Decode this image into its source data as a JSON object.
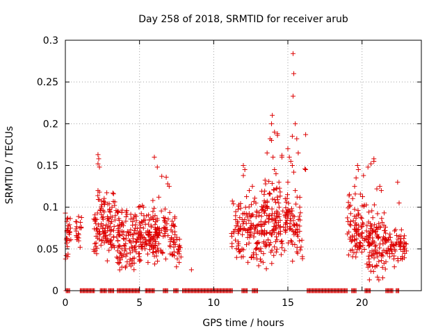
{
  "chart_data": {
    "type": "scatter",
    "title": "Day 258 of 2018, SRMTID for receiver arub",
    "xlabel": "GPS time / hours",
    "ylabel": "SRMTID / TECUs",
    "xlim": [
      0,
      24
    ],
    "ylim": [
      0,
      0.3
    ],
    "x_ticks": [
      0,
      5,
      10,
      15,
      20
    ],
    "x_tick_labels": [
      "0",
      "5",
      "10",
      "15",
      "20"
    ],
    "y_ticks": [
      0,
      0.05,
      0.1,
      0.15,
      0.2,
      0.25,
      0.3
    ],
    "y_tick_labels": [
      "0",
      "0.05",
      "0.1",
      "0.15",
      "0.2",
      "0.25",
      "0.3"
    ],
    "grid": true,
    "marker": "plus",
    "series": [
      {
        "name": "SRMTID",
        "color": "#dd0000",
        "clusters": [
          {
            "x_range": [
              0.0,
              0.4
            ],
            "y_range": [
              0.028,
              0.097
            ],
            "count": 28
          },
          {
            "x_range": [
              0.7,
              1.1
            ],
            "y_range": [
              0.05,
              0.098
            ],
            "count": 22
          },
          {
            "x_range": [
              1.9,
              3.4
            ],
            "y_range": [
              0.03,
              0.12
            ],
            "count": 120
          },
          {
            "x_range": [
              3.4,
              5.2
            ],
            "y_range": [
              0.018,
              0.105
            ],
            "count": 140
          },
          {
            "x_range": [
              5.0,
              6.3
            ],
            "y_range": [
              0.024,
              0.105
            ],
            "count": 100
          },
          {
            "x_range": [
              6.0,
              7.4
            ],
            "y_range": [
              0.03,
              0.108
            ],
            "count": 70
          },
          {
            "x_range": [
              7.2,
              7.9
            ],
            "y_range": [
              0.025,
              0.078
            ],
            "count": 22
          },
          {
            "x_range": [
              11.2,
              12.6
            ],
            "y_range": [
              0.025,
              0.12
            ],
            "count": 90
          },
          {
            "x_range": [
              12.6,
              14.3
            ],
            "y_range": [
              0.018,
              0.145
            ],
            "count": 150
          },
          {
            "x_range": [
              14.3,
              15.2
            ],
            "y_range": [
              0.04,
              0.13
            ],
            "count": 60
          },
          {
            "x_range": [
              15.2,
              16.0
            ],
            "y_range": [
              0.03,
              0.125
            ],
            "count": 45
          },
          {
            "x_range": [
              19.0,
              20.3
            ],
            "y_range": [
              0.03,
              0.12
            ],
            "count": 90
          },
          {
            "x_range": [
              20.3,
              21.6
            ],
            "y_range": [
              0.012,
              0.105
            ],
            "count": 110
          },
          {
            "x_range": [
              21.6,
              23.0
            ],
            "y_range": [
              0.028,
              0.075
            ],
            "count": 70
          }
        ],
        "points": [
          [
            2.2,
            0.163
          ],
          [
            2.25,
            0.158
          ],
          [
            2.2,
            0.152
          ],
          [
            2.3,
            0.148
          ],
          [
            2.2,
            0.12
          ],
          [
            2.3,
            0.118
          ],
          [
            3.2,
            0.117
          ],
          [
            3.25,
            0.116
          ],
          [
            3.0,
            0.095
          ],
          [
            6.0,
            0.16
          ],
          [
            6.2,
            0.148
          ],
          [
            6.5,
            0.137
          ],
          [
            6.8,
            0.136
          ],
          [
            6.9,
            0.128
          ],
          [
            7.0,
            0.125
          ],
          [
            6.3,
            0.112
          ],
          [
            5.9,
            0.108
          ],
          [
            8.5,
            0.025
          ],
          [
            12.0,
            0.15
          ],
          [
            12.1,
            0.145
          ],
          [
            12.0,
            0.138
          ],
          [
            12.4,
            0.12
          ],
          [
            13.5,
            0.128
          ],
          [
            13.8,
            0.182
          ],
          [
            13.9,
            0.18
          ],
          [
            13.9,
            0.2
          ],
          [
            13.95,
            0.21
          ],
          [
            14.1,
            0.19
          ],
          [
            14.3,
            0.188
          ],
          [
            14.3,
            0.186
          ],
          [
            13.6,
            0.165
          ],
          [
            14.0,
            0.16
          ],
          [
            14.1,
            0.145
          ],
          [
            14.2,
            0.14
          ],
          [
            14.4,
            0.13
          ],
          [
            14.6,
            0.162
          ],
          [
            14.6,
            0.16
          ],
          [
            15.0,
            0.17
          ],
          [
            15.1,
            0.16
          ],
          [
            15.2,
            0.155
          ],
          [
            15.3,
            0.15
          ],
          [
            15.4,
            0.142
          ],
          [
            15.0,
            0.13
          ],
          [
            15.35,
            0.284
          ],
          [
            15.4,
            0.26
          ],
          [
            15.35,
            0.233
          ],
          [
            15.5,
            0.2
          ],
          [
            15.6,
            0.182
          ],
          [
            15.7,
            0.165
          ],
          [
            15.3,
            0.185
          ],
          [
            15.5,
            0.12
          ],
          [
            16.2,
            0.187
          ],
          [
            16.15,
            0.146
          ],
          [
            16.2,
            0.145
          ],
          [
            15.8,
            0.1
          ],
          [
            19.7,
            0.15
          ],
          [
            19.75,
            0.145
          ],
          [
            19.6,
            0.135
          ],
          [
            19.5,
            0.125
          ],
          [
            20.1,
            0.138
          ],
          [
            20.4,
            0.148
          ],
          [
            20.6,
            0.152
          ],
          [
            20.8,
            0.155
          ],
          [
            20.8,
            0.158
          ],
          [
            21.0,
            0.122
          ],
          [
            21.2,
            0.125
          ],
          [
            21.3,
            0.12
          ],
          [
            22.4,
            0.13
          ],
          [
            22.5,
            0.105
          ],
          [
            20.5,
            0.013
          ]
        ],
        "zero_segments_hours": [
          [
            0.05,
            0.3
          ],
          [
            1.0,
            2.0
          ],
          [
            2.35,
            2.8
          ],
          [
            2.9,
            3.3
          ],
          [
            3.5,
            5.0
          ],
          [
            5.4,
            6.0
          ],
          [
            6.6,
            6.9
          ],
          [
            7.3,
            7.6
          ],
          [
            7.9,
            11.3
          ],
          [
            11.9,
            12.3
          ],
          [
            12.6,
            13.0
          ],
          [
            16.3,
            19.0
          ],
          [
            19.3,
            19.6
          ],
          [
            20.2,
            20.6
          ],
          [
            21.6,
            22.1
          ],
          [
            22.3,
            22.5
          ]
        ]
      }
    ]
  }
}
